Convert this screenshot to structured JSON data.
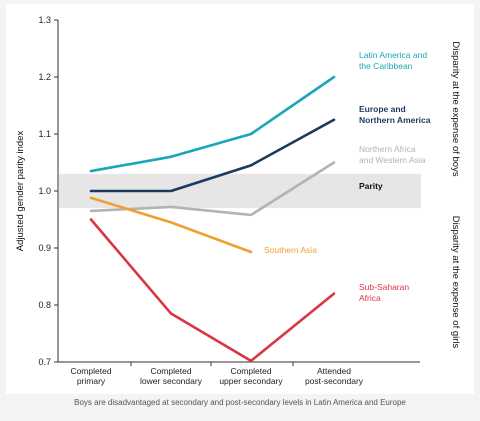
{
  "chart_data": {
    "type": "line",
    "ylabel": "Adjusted gender parity index",
    "ylim": [
      0.7,
      1.3
    ],
    "yticks": [
      "0.7",
      "0.8",
      "0.9",
      "1.0",
      "1.1",
      "1.2",
      "1.3"
    ],
    "categories": [
      [
        "Completed",
        "primary"
      ],
      [
        "Completed",
        "lower secondary"
      ],
      [
        "Completed",
        "upper secondary"
      ],
      [
        "Attended",
        "post-secondary"
      ]
    ],
    "parity_band": {
      "label": "Parity",
      "range": [
        0.97,
        1.03
      ],
      "color": "#e6e6e6"
    },
    "right_annotations": {
      "top": "Disparity at the expense of boys",
      "bottom": "Disparity at the expense of girls"
    },
    "series": [
      {
        "name": "Latin America and the Caribbean",
        "label_lines": [
          "Latin America and",
          "the Caribbean"
        ],
        "color": "#1aa6b7",
        "values": [
          1.035,
          1.06,
          1.1,
          1.2
        ]
      },
      {
        "name": "Europe and Northern America",
        "label_lines": [
          "Europe and",
          "Northern America"
        ],
        "color": "#1b3a5c",
        "values": [
          1.0,
          1.0,
          1.045,
          1.125
        ]
      },
      {
        "name": "Northern Africa and Western Asia",
        "label_lines": [
          "Northern Africa",
          "and Western Asia"
        ],
        "color": "#b3b3b3",
        "values": [
          0.965,
          0.972,
          0.958,
          1.05
        ]
      },
      {
        "name": "Southern Asia",
        "label_lines": [
          "Southern Asia"
        ],
        "color": "#f0a030",
        "values": [
          0.988,
          0.945,
          0.893,
          null
        ]
      },
      {
        "name": "Sub-Saharan Africa",
        "label_lines": [
          "Sub-Saharan",
          "Africa"
        ],
        "color": "#d93545",
        "values": [
          0.95,
          0.785,
          0.702,
          0.82
        ]
      }
    ]
  },
  "caption": "Boys are disadvantaged at secondary and post-secondary levels in Latin America and Europe"
}
